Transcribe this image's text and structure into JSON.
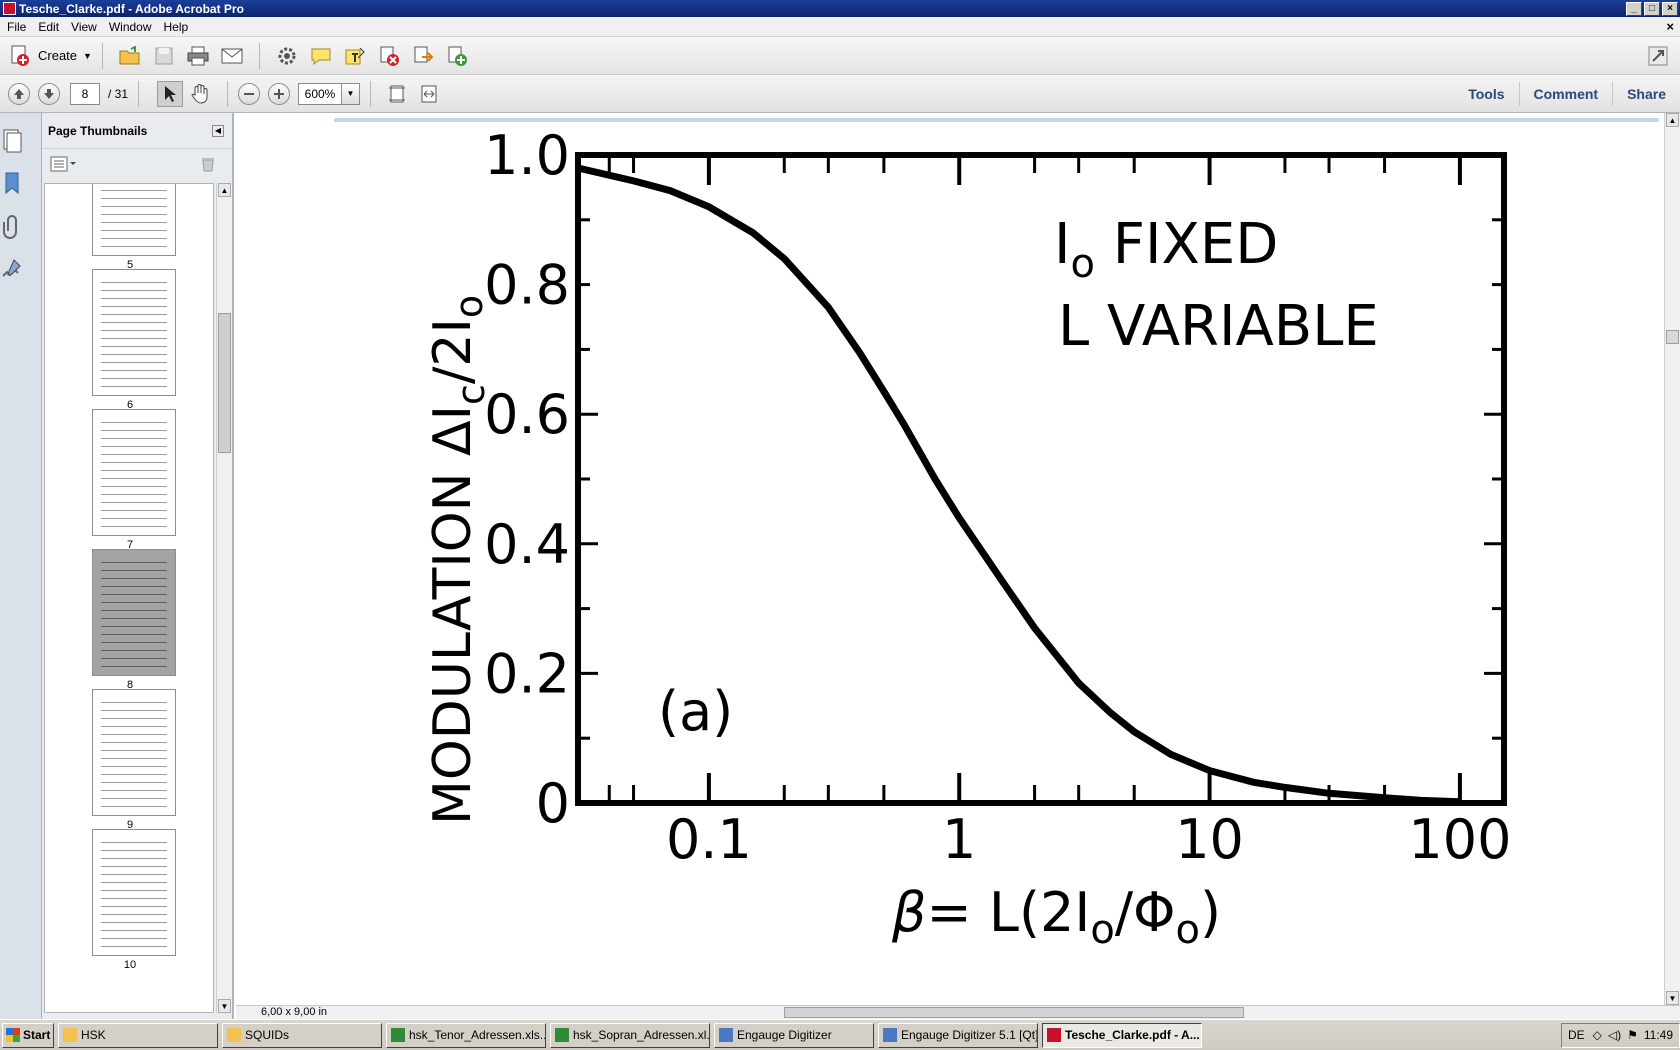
{
  "window": {
    "title": "Tesche_Clarke.pdf - Adobe Acrobat Pro",
    "buttons": [
      "_",
      "□",
      "×"
    ]
  },
  "menu": {
    "items": [
      "File",
      "Edit",
      "View",
      "Window",
      "Help"
    ],
    "close": "×"
  },
  "toolbar": {
    "create_label": "Create"
  },
  "nav": {
    "page_current": "8",
    "page_total": "/ 31",
    "zoom": "600%"
  },
  "right_links": {
    "tools": "Tools",
    "comment": "Comment",
    "share": "Share"
  },
  "panel": {
    "title": "Page Thumbnails",
    "thumbnails": [
      {
        "num": "5",
        "selected": false
      },
      {
        "num": "6",
        "selected": false
      },
      {
        "num": "7",
        "selected": false
      },
      {
        "num": "8",
        "selected": true
      },
      {
        "num": "9",
        "selected": false
      },
      {
        "num": "10",
        "selected": false
      }
    ]
  },
  "status": {
    "page_size": "6,00 x 9,00 in"
  },
  "chart_data": {
    "type": "line",
    "x_scale": "log",
    "xlim": [
      0.03,
      150
    ],
    "ylim": [
      0,
      1.0
    ],
    "x_ticks": [
      "0.1",
      "1",
      "10",
      "100"
    ],
    "y_ticks": [
      "0",
      "0.2",
      "0.4",
      "0.6",
      "0.8",
      "1.0"
    ],
    "ylabel": "MODULATION ΔI",
    "ylabel_sub": "c",
    "ylabel_tail": "/2I",
    "ylabel_sub2": "o",
    "xlabel_beta": "β",
    "xlabel_eq": "= L(2I",
    "xlabel_sub1": "o",
    "xlabel_mid": "/Φ",
    "xlabel_sub2": "o",
    "xlabel_end": ")",
    "annotation_line1": "I",
    "annotation_line1_sub": "o",
    "annotation_line1_rest": " FIXED",
    "annotation_line2": "L VARIABLE",
    "panel_label": "(a)",
    "series": [
      {
        "x": [
          0.03,
          0.05,
          0.07,
          0.1,
          0.15,
          0.2,
          0.3,
          0.4,
          0.5,
          0.6,
          0.8,
          1,
          1.5,
          2,
          3,
          4,
          5,
          7,
          10,
          15,
          20,
          30,
          50,
          70,
          100
        ],
        "y": [
          0.98,
          0.96,
          0.945,
          0.92,
          0.88,
          0.84,
          0.765,
          0.695,
          0.635,
          0.585,
          0.5,
          0.44,
          0.34,
          0.27,
          0.185,
          0.14,
          0.11,
          0.075,
          0.05,
          0.032,
          0.024,
          0.015,
          0.008,
          0.004,
          0.002
        ]
      }
    ]
  },
  "taskbar": {
    "start": "Start",
    "tasks": [
      {
        "label": "HSK",
        "active": false
      },
      {
        "label": "SQUIDs",
        "active": false
      },
      {
        "label": "hsk_Tenor_Adressen.xls...",
        "active": false
      },
      {
        "label": "hsk_Sopran_Adressen.xl...",
        "active": false
      },
      {
        "label": "Engauge Digitizer",
        "active": false
      },
      {
        "label": "Engauge Digitizer 5.1 [Qt]",
        "active": false
      },
      {
        "label": "Tesche_Clarke.pdf - A...",
        "active": true
      }
    ],
    "lang": "DE",
    "clock": "11:49"
  }
}
